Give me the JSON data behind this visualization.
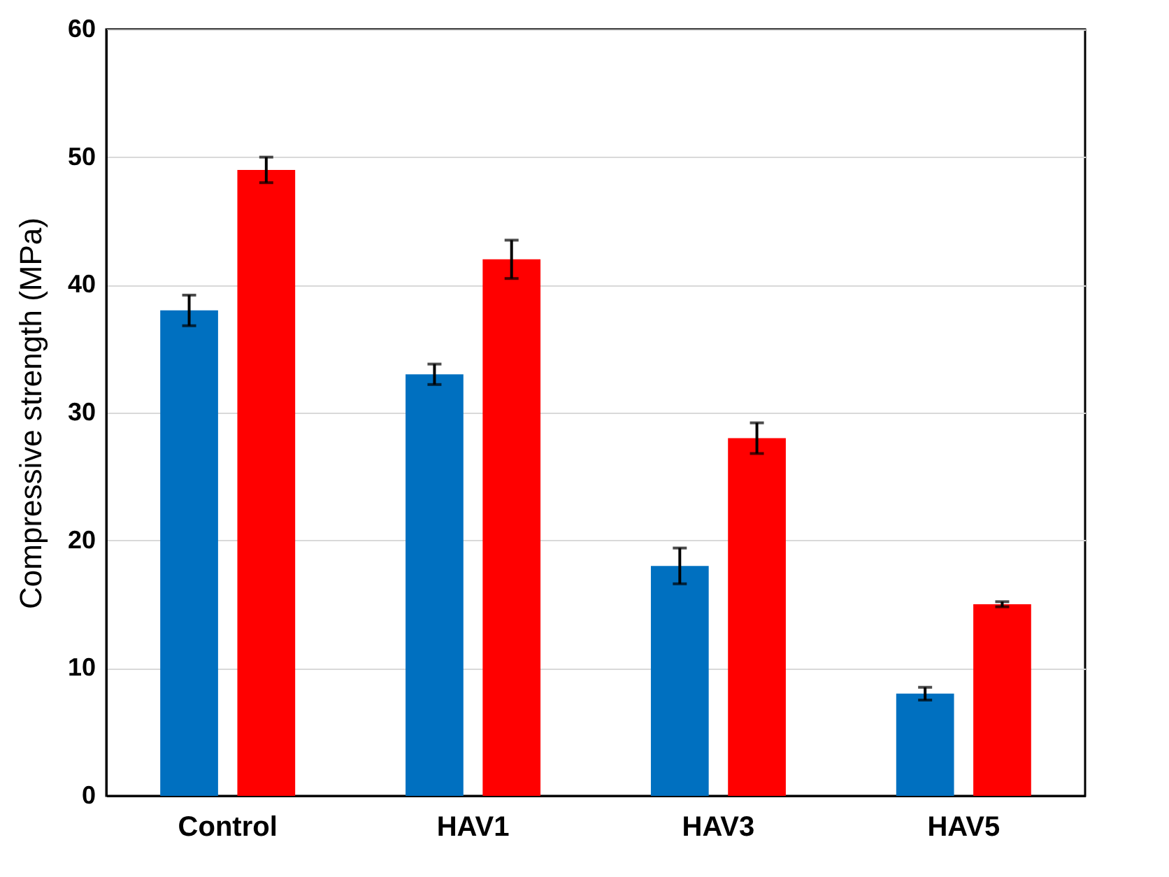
{
  "chart_data": {
    "type": "bar",
    "ylabel": "Compressive strength (MPa)",
    "categories": [
      "Control",
      "HAV1",
      "HAV3",
      "HAV5"
    ],
    "series": [
      {
        "color": "#0070c0",
        "values": [
          38,
          33,
          18,
          8
        ],
        "errors": [
          1.2,
          0.8,
          1.4,
          0.5
        ]
      },
      {
        "color": "#ff0000",
        "values": [
          49,
          42,
          28,
          15
        ],
        "errors": [
          1,
          1.5,
          1.2,
          0.2
        ]
      }
    ],
    "ylim": [
      0,
      60
    ],
    "yticks": [
      0,
      10,
      20,
      30,
      40,
      50,
      60
    ],
    "grid": "y",
    "legend": false
  }
}
